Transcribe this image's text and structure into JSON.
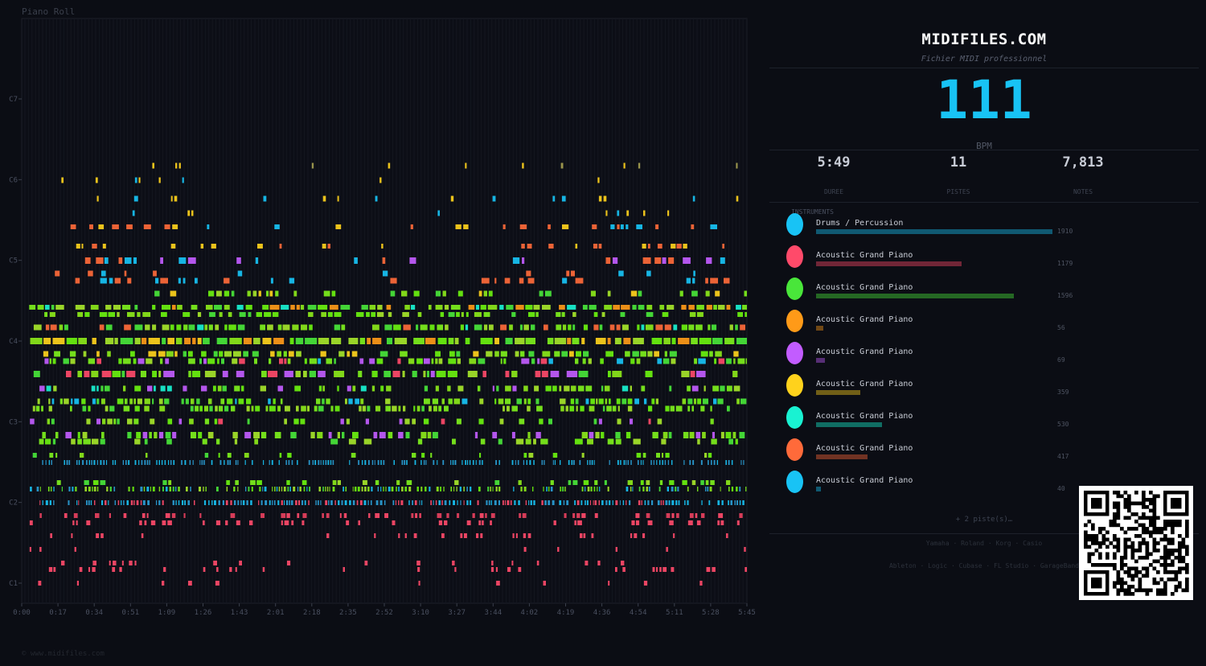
{
  "piano_roll": {
    "title": "Piano Roll",
    "footer": "© www.midifiles.com",
    "pitch_labels": [
      "C7",
      "C6",
      "C5",
      "C4",
      "C3",
      "C2",
      "C1"
    ],
    "time_labels": [
      "0:00",
      "0:17",
      "0:34",
      "0:51",
      "1:09",
      "1:26",
      "1:43",
      "2:01",
      "2:18",
      "2:35",
      "2:52",
      "3:10",
      "3:27",
      "3:44",
      "4:02",
      "4:19",
      "4:36",
      "4:54",
      "5:11",
      "5:28",
      "5:45"
    ],
    "colors": {
      "background": "#0b0d14",
      "grid": "#1a1d27",
      "notes": [
        "#6bf20f",
        "#8ce81a",
        "#a6e52a",
        "#49e63a",
        "#ff9a18",
        "#ffd21c",
        "#ff6a3a",
        "#18c3f5",
        "#ff4a6a",
        "#c25cff",
        "#19f2d2"
      ]
    }
  },
  "brand": {
    "name": "MIDIFILES.COM",
    "subtitle": "Fichier MIDI professionnel"
  },
  "tempo": {
    "value": "111",
    "label": "BPM",
    "color": "#18c3f5"
  },
  "stats": [
    {
      "value": "5:49",
      "label": "DUREE",
      "color": "#18c3f5"
    },
    {
      "value": "11",
      "label": "PISTES",
      "color": "#49e63a"
    },
    {
      "value": "7,813",
      "label": "NOTES",
      "color": "#c25cff"
    }
  ],
  "instruments": {
    "header": "INSTRUMENTS",
    "max_count": 1910,
    "items": [
      {
        "name": "Drums / Percussion",
        "count": 1910,
        "color": "#18c3f5"
      },
      {
        "name": "Acoustic Grand Piano",
        "count": 1179,
        "color": "#ff4a6a"
      },
      {
        "name": "Acoustic Grand Piano",
        "count": 1596,
        "color": "#49e63a"
      },
      {
        "name": "Acoustic Grand Piano",
        "count": 56,
        "color": "#ff9a18"
      },
      {
        "name": "Acoustic Grand Piano",
        "count": 69,
        "color": "#c25cff"
      },
      {
        "name": "Acoustic Grand Piano",
        "count": 359,
        "color": "#ffd21c"
      },
      {
        "name": "Acoustic Grand Piano",
        "count": 530,
        "color": "#19f2d2"
      },
      {
        "name": "Acoustic Grand Piano",
        "count": 417,
        "color": "#ff6a3a"
      },
      {
        "name": "Acoustic Grand Piano",
        "count": 40,
        "color": "#18c3f5"
      }
    ],
    "more": "+ 2 piste(s)…"
  },
  "compat": {
    "hardware": "Yamaha · Roland · Korg · Casio",
    "software": "Ableton · Logic · Cubase · FL Studio · GarageBand"
  },
  "qr_code": {
    "icon": "qr-code-icon"
  }
}
